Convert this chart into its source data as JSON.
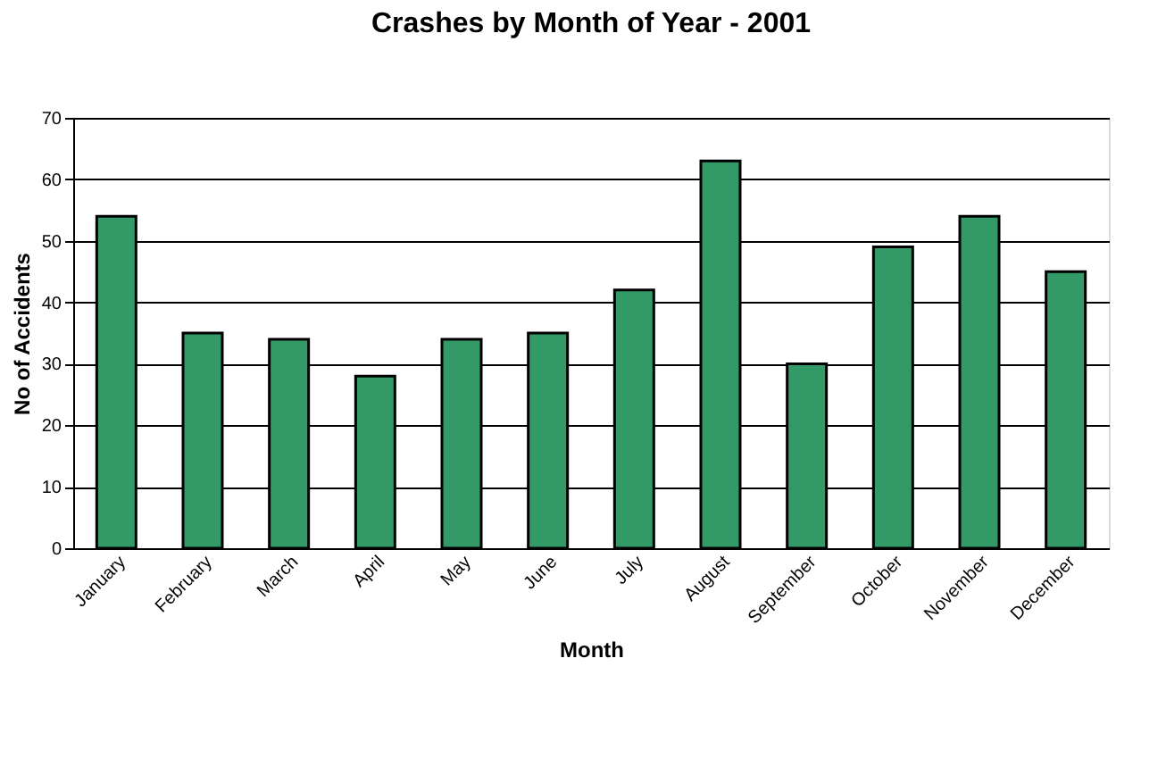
{
  "chart_data": {
    "type": "bar",
    "title": "Crashes by Month of Year - 2001",
    "xlabel": "Month",
    "ylabel": "No of Accidents",
    "categories": [
      "January",
      "February",
      "March",
      "April",
      "May",
      "June",
      "July",
      "August",
      "September",
      "October",
      "November",
      "December"
    ],
    "values": [
      54,
      35,
      34,
      28,
      34,
      35,
      42,
      63,
      30,
      49,
      54,
      45
    ],
    "color": "#339966",
    "ylim": [
      0,
      70
    ],
    "yticks": [
      0,
      10,
      20,
      30,
      40,
      50,
      60,
      70
    ],
    "grid": "y"
  }
}
